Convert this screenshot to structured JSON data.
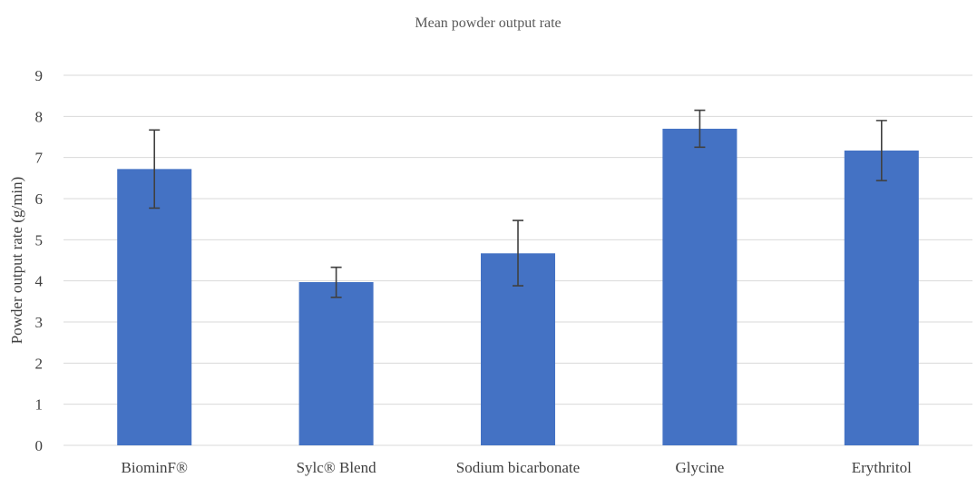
{
  "chart_data": {
    "type": "bar",
    "title": "Mean powder output rate",
    "xlabel": "",
    "ylabel": "Powder output rate (g/min)",
    "categories": [
      "BiominF®",
      "Sylc® Blend",
      "Sodium bicarbonate",
      "Glycine",
      "Erythritol"
    ],
    "values": [
      6.72,
      3.97,
      4.67,
      7.7,
      7.17
    ],
    "error_low": [
      5.77,
      3.6,
      3.88,
      7.25,
      6.44
    ],
    "error_high": [
      7.67,
      4.33,
      5.47,
      8.15,
      7.9
    ],
    "ylim": [
      0,
      9
    ],
    "yticks": [
      "0",
      "1",
      "2",
      "3",
      "4",
      "5",
      "6",
      "7",
      "8",
      "9"
    ],
    "grid": true,
    "colors": {
      "bar": "#4472c4",
      "error": "#404040",
      "grid": "#d9d9d9"
    }
  }
}
